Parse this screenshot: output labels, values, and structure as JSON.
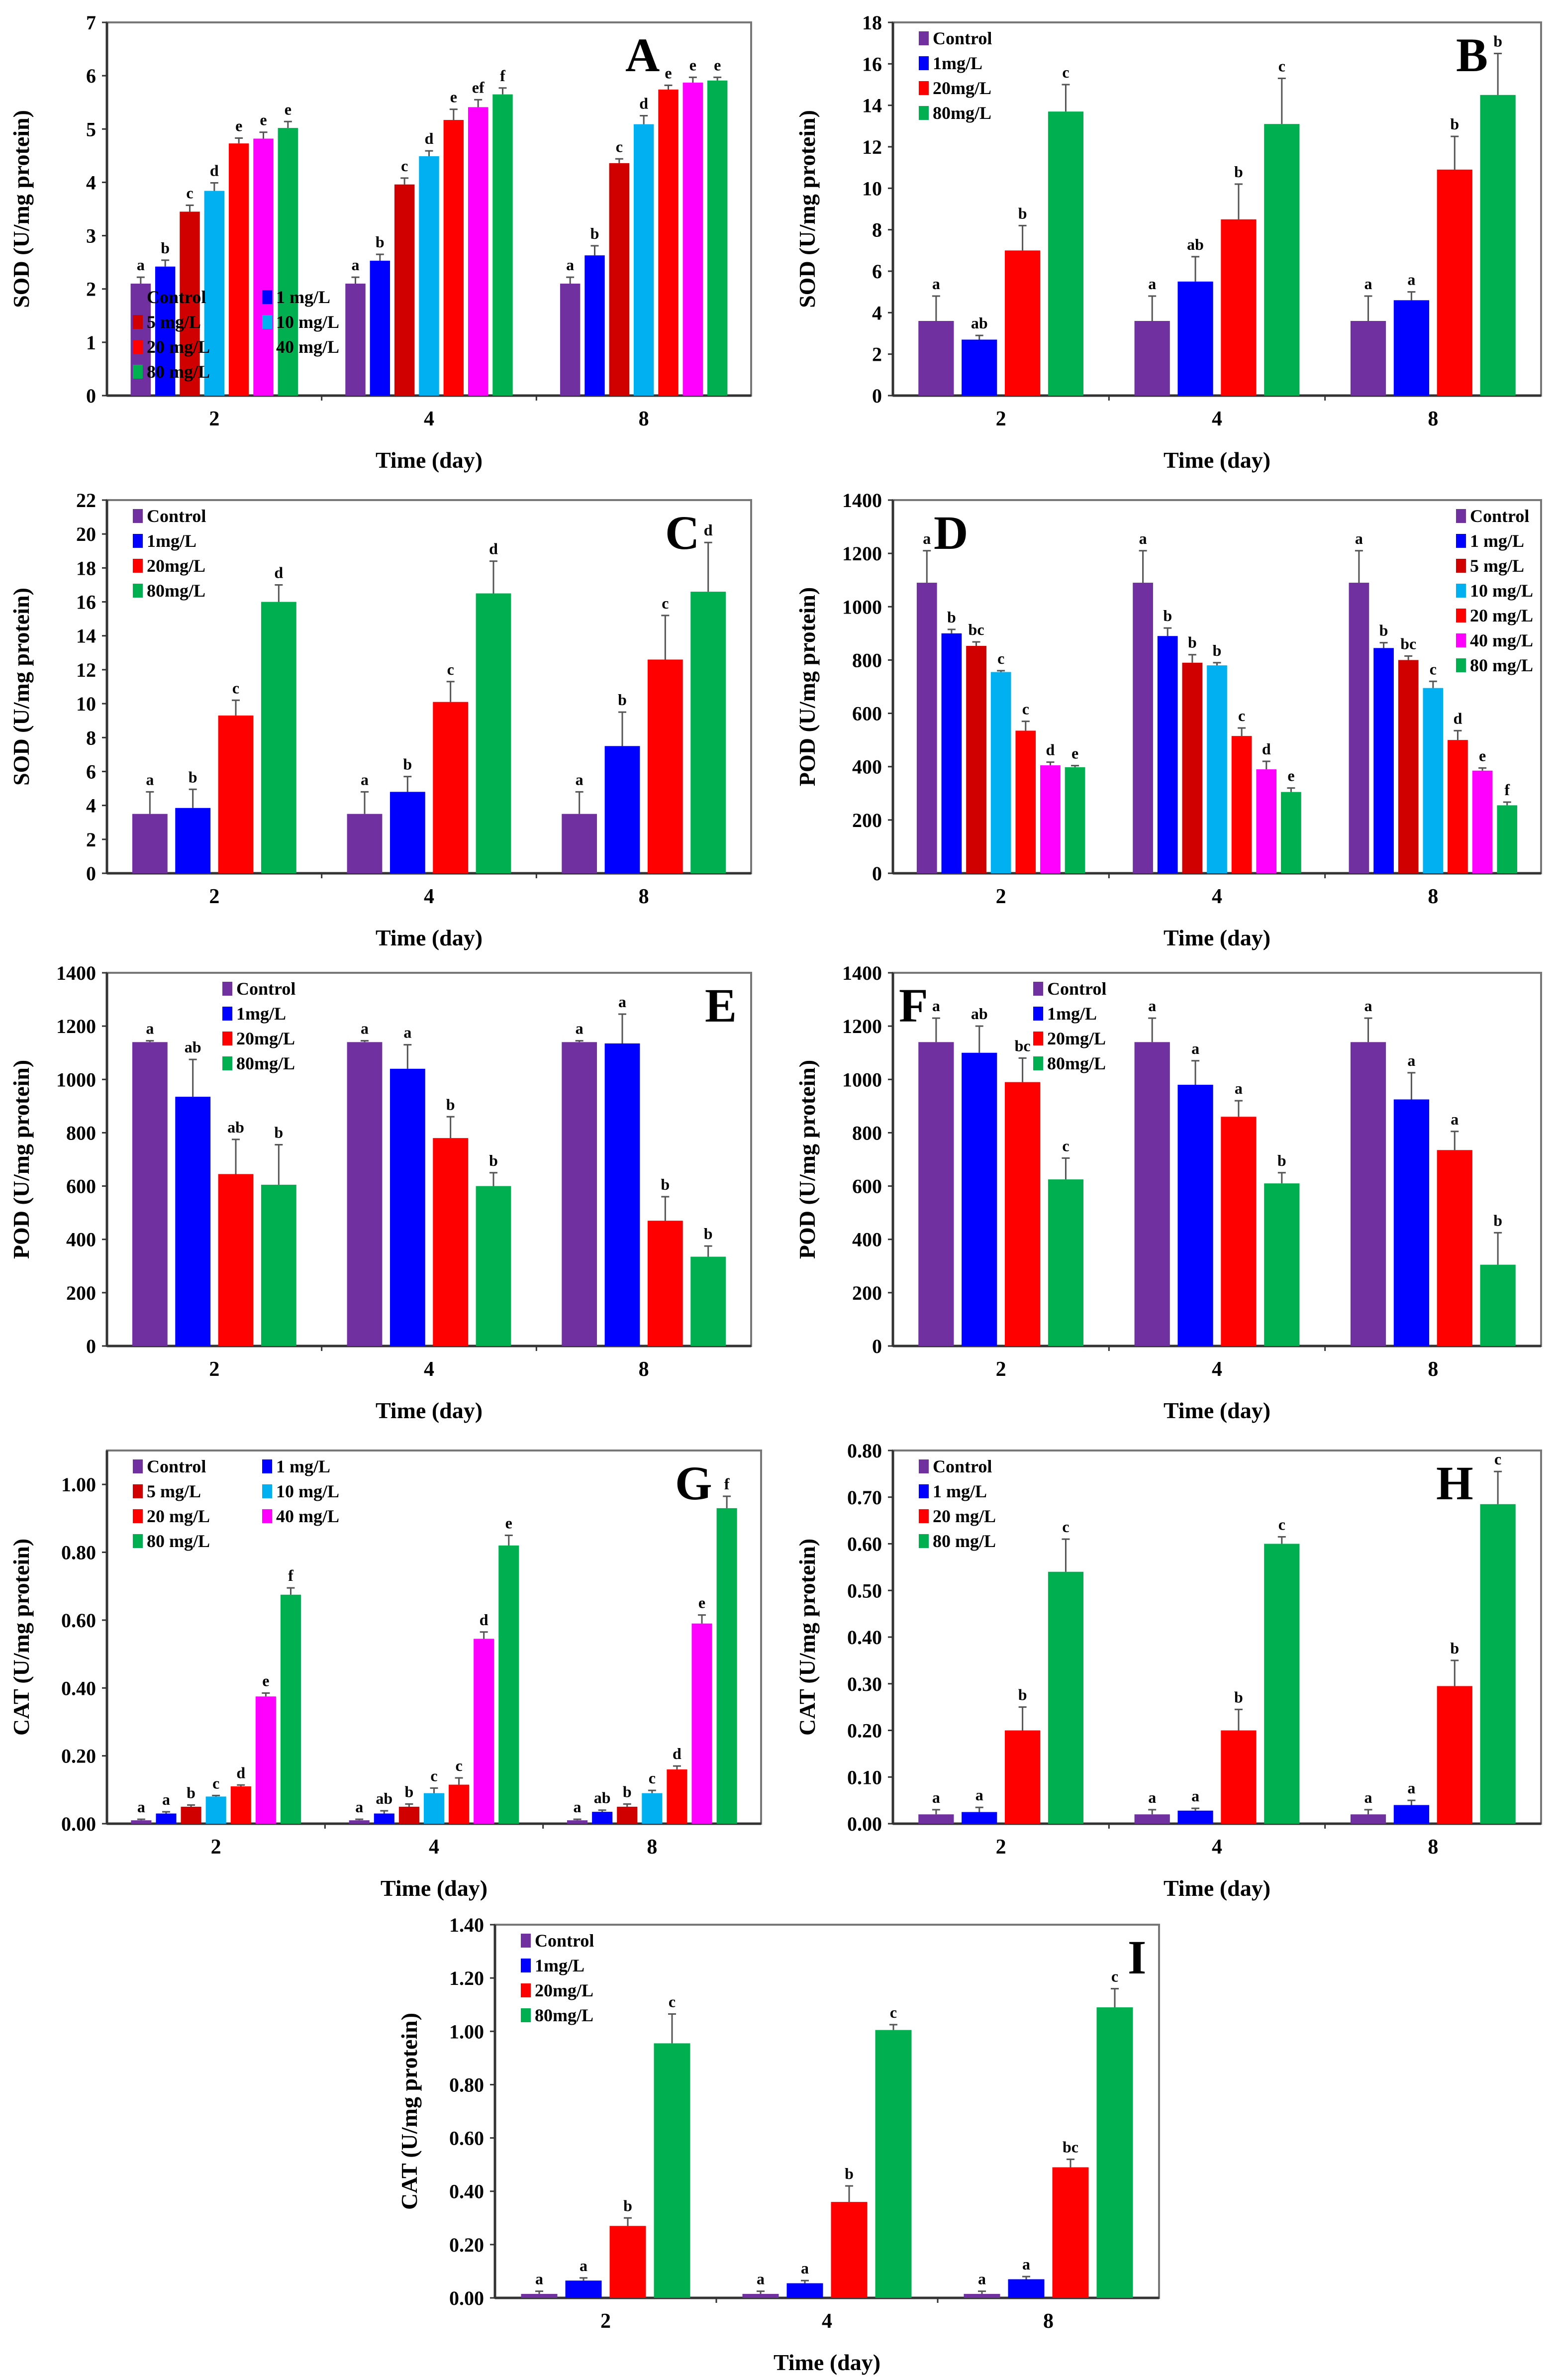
{
  "chart_data": [
    {
      "panel": "A",
      "type": "bar",
      "ylabel": "SOD (U/mg protein)",
      "xlabel": "Time (day)",
      "categories": [
        "2",
        "4",
        "8"
      ],
      "ylim": [
        0,
        7
      ],
      "ytick_step": 1,
      "ytick_decimals": 0,
      "legend_position": "top-left",
      "legend_columns": 2,
      "panel_label_position": "top-right",
      "series": [
        {
          "name": "Control",
          "color": "#7030a0",
          "values": [
            2.1,
            2.1,
            2.1
          ],
          "err": [
            0.12,
            0.12,
            0.12
          ],
          "letters": [
            "a",
            "a",
            "a"
          ]
        },
        {
          "name": "1 mg/L",
          "color": "#0000ff",
          "values": [
            2.42,
            2.53,
            2.63
          ],
          "err": [
            0.12,
            0.12,
            0.18
          ],
          "letters": [
            "b",
            "b",
            "b"
          ]
        },
        {
          "name": "5 mg/L",
          "color": "#d00000",
          "values": [
            3.45,
            3.96,
            4.36
          ],
          "err": [
            0.12,
            0.12,
            0.08
          ],
          "letters": [
            "c",
            "c",
            "c"
          ]
        },
        {
          "name": "10 mg/L",
          "color": "#00b0f0",
          "values": [
            3.84,
            4.49,
            5.09
          ],
          "err": [
            0.15,
            0.1,
            0.16
          ],
          "letters": [
            "d",
            "d",
            "d"
          ]
        },
        {
          "name": "20 mg/L",
          "color": "#ff0000",
          "values": [
            4.73,
            5.17,
            5.74
          ],
          "err": [
            0.1,
            0.2,
            0.08
          ],
          "letters": [
            "e",
            "e",
            "e"
          ]
        },
        {
          "name": "40 mg/L",
          "color": "#ff00ff",
          "values": [
            4.82,
            5.41,
            5.87
          ],
          "err": [
            0.12,
            0.14,
            0.1
          ],
          "letters": [
            "e",
            "ef",
            "e"
          ]
        },
        {
          "name": "80 mg/L",
          "color": "#00b050",
          "values": [
            5.02,
            5.65,
            5.91
          ],
          "err": [
            0.12,
            0.12,
            0.06
          ],
          "letters": [
            "e",
            "f",
            "e"
          ]
        }
      ]
    },
    {
      "panel": "B",
      "type": "bar",
      "ylabel": "SOD (U/mg protein)",
      "xlabel": "Time (day)",
      "categories": [
        "2",
        "4",
        "8"
      ],
      "ylim": [
        0,
        18
      ],
      "ytick_step": 2,
      "ytick_decimals": 0,
      "legend_position": "top-left",
      "legend_columns": 1,
      "panel_label_position": "top-right",
      "series": [
        {
          "name": "Control",
          "color": "#7030a0",
          "values": [
            3.6,
            3.6,
            3.6
          ],
          "err": [
            1.2,
            1.2,
            1.2
          ],
          "letters": [
            "a",
            "a",
            "a"
          ]
        },
        {
          "name": "1mg/L",
          "color": "#0000ff",
          "values": [
            2.7,
            5.5,
            4.6
          ],
          "err": [
            0.2,
            1.2,
            0.4
          ],
          "letters": [
            "ab",
            "ab",
            "a"
          ]
        },
        {
          "name": "20mg/L",
          "color": "#ff0000",
          "values": [
            7.0,
            8.5,
            10.9
          ],
          "err": [
            1.2,
            1.7,
            1.6
          ],
          "letters": [
            "b",
            "b",
            "b"
          ]
        },
        {
          "name": "80mg/L",
          "color": "#00b050",
          "values": [
            13.7,
            13.1,
            14.5
          ],
          "err": [
            1.3,
            2.2,
            2.0
          ],
          "letters": [
            "c",
            "c",
            "b"
          ]
        }
      ]
    },
    {
      "panel": "C",
      "type": "bar",
      "ylabel": "SOD (U/mg protein)",
      "xlabel": "Time (day)",
      "categories": [
        "2",
        "4",
        "8"
      ],
      "ylim": [
        0,
        22
      ],
      "ytick_step": 2,
      "ytick_decimals": 0,
      "legend_position": "top-left",
      "legend_columns": 1,
      "panel_label_position": "top-right",
      "series": [
        {
          "name": "Control",
          "color": "#7030a0",
          "values": [
            3.5,
            3.5,
            3.5
          ],
          "err": [
            1.3,
            1.3,
            1.3
          ],
          "letters": [
            "a",
            "a",
            "a"
          ]
        },
        {
          "name": "1mg/L",
          "color": "#0000ff",
          "values": [
            3.85,
            4.8,
            7.5
          ],
          "err": [
            1.1,
            0.9,
            2.0
          ],
          "letters": [
            "b",
            "b",
            "b"
          ]
        },
        {
          "name": "20mg/L",
          "color": "#ff0000",
          "values": [
            9.3,
            10.1,
            12.6
          ],
          "err": [
            0.9,
            1.2,
            2.6
          ],
          "letters": [
            "c",
            "c",
            "c"
          ]
        },
        {
          "name": "80mg/L",
          "color": "#00b050",
          "values": [
            16.0,
            16.5,
            16.6
          ],
          "err": [
            1.0,
            1.9,
            2.9
          ],
          "letters": [
            "d",
            "d",
            "d"
          ]
        }
      ]
    },
    {
      "panel": "D",
      "type": "bar",
      "ylabel": "POD (U/mg protein)",
      "xlabel": "Time (day)",
      "categories": [
        "2",
        "4",
        "8"
      ],
      "ylim": [
        0,
        1400
      ],
      "ytick_step": 200,
      "ytick_decimals": 0,
      "legend_position": "top-right",
      "legend_columns": 1,
      "panel_label_position": "top-left",
      "series": [
        {
          "name": "Control",
          "color": "#7030a0",
          "values": [
            1090,
            1090,
            1090
          ],
          "err": [
            120,
            120,
            120
          ],
          "letters": [
            "a",
            "a",
            "a"
          ]
        },
        {
          "name": "1 mg/L",
          "color": "#0000ff",
          "values": [
            900,
            890,
            845
          ],
          "err": [
            15,
            30,
            20
          ],
          "letters": [
            "b",
            "b",
            "b"
          ]
        },
        {
          "name": "5 mg/L",
          "color": "#d00000",
          "values": [
            853,
            790,
            800
          ],
          "err": [
            15,
            30,
            15
          ],
          "letters": [
            "bc",
            "b",
            "bc"
          ]
        },
        {
          "name": "10 mg/L",
          "color": "#00b0f0",
          "values": [
            755,
            780,
            695
          ],
          "err": [
            5,
            10,
            25
          ],
          "letters": [
            "c",
            "b",
            "c"
          ]
        },
        {
          "name": "20 mg/L",
          "color": "#ff0000",
          "values": [
            535,
            515,
            500
          ],
          "err": [
            35,
            30,
            35
          ],
          "letters": [
            "c",
            "c",
            "d"
          ]
        },
        {
          "name": "40 mg/L",
          "color": "#ff00ff",
          "values": [
            405,
            390,
            385
          ],
          "err": [
            12,
            30,
            10
          ],
          "letters": [
            "d",
            "d",
            "e"
          ]
        },
        {
          "name": "80 mg/L",
          "color": "#00b050",
          "values": [
            398,
            305,
            255
          ],
          "err": [
            6,
            15,
            12
          ],
          "letters": [
            "e",
            "e",
            "f"
          ]
        }
      ]
    },
    {
      "panel": "E",
      "type": "bar",
      "ylabel": "POD (U/mg protein)",
      "xlabel": "Time (day)",
      "categories": [
        "2",
        "4",
        "8"
      ],
      "ylim": [
        0,
        1400
      ],
      "ytick_step": 200,
      "ytick_decimals": 0,
      "legend_position": "top-center",
      "legend_columns": 1,
      "panel_label_position": "top-right",
      "series": [
        {
          "name": "Control",
          "color": "#7030a0",
          "values": [
            1140,
            1140,
            1140
          ],
          "err": [
            5,
            5,
            5
          ],
          "letters": [
            "a",
            "a",
            "a"
          ]
        },
        {
          "name": "1mg/L",
          "color": "#0000ff",
          "values": [
            935,
            1040,
            1135
          ],
          "err": [
            140,
            90,
            110
          ],
          "letters": [
            "ab",
            "a",
            "a"
          ]
        },
        {
          "name": "20mg/L",
          "color": "#ff0000",
          "values": [
            645,
            780,
            470
          ],
          "err": [
            130,
            80,
            90
          ],
          "letters": [
            "ab",
            "b",
            "b"
          ]
        },
        {
          "name": "80mg/L",
          "color": "#00b050",
          "values": [
            605,
            600,
            335
          ],
          "err": [
            150,
            50,
            40
          ],
          "letters": [
            "b",
            "b",
            "b"
          ]
        }
      ]
    },
    {
      "panel": "F",
      "type": "bar",
      "ylabel": "POD (U/mg  protein)",
      "xlabel": "Time (day)",
      "categories": [
        "2",
        "4",
        "8"
      ],
      "ylim": [
        0,
        1400
      ],
      "ytick_step": 200,
      "ytick_decimals": 0,
      "legend_position": "top-center",
      "legend_columns": 1,
      "panel_label_position": "top-left",
      "series": [
        {
          "name": "Control",
          "color": "#7030a0",
          "values": [
            1140,
            1140,
            1140
          ],
          "err": [
            90,
            90,
            90
          ],
          "letters": [
            "a",
            "a",
            "a"
          ]
        },
        {
          "name": "1mg/L",
          "color": "#0000ff",
          "values": [
            1100,
            980,
            925
          ],
          "err": [
            100,
            90,
            100
          ],
          "letters": [
            "ab",
            "a",
            "a"
          ]
        },
        {
          "name": "20mg/L",
          "color": "#ff0000",
          "values": [
            990,
            860,
            735
          ],
          "err": [
            90,
            60,
            70
          ],
          "letters": [
            "bc",
            "a",
            "a"
          ]
        },
        {
          "name": "80mg/L",
          "color": "#00b050",
          "values": [
            625,
            610,
            305
          ],
          "err": [
            80,
            40,
            120
          ],
          "letters": [
            "c",
            "b",
            "b"
          ]
        }
      ]
    },
    {
      "panel": "G",
      "type": "bar",
      "ylabel": "CAT (U/mg protein)",
      "xlabel": "Time (day)",
      "categories": [
        "2",
        "4",
        "8"
      ],
      "ylim": [
        0,
        1.1
      ],
      "ytick_step": 0.2,
      "ytick_max": 1.0,
      "ytick_decimals": 2,
      "legend_position": "top-left",
      "legend_columns": 2,
      "panel_label_position": "top-right",
      "series": [
        {
          "name": "Control",
          "color": "#7030a0",
          "values": [
            0.01,
            0.01,
            0.01
          ],
          "err": [
            0.003,
            0.003,
            0.003
          ],
          "letters": [
            "a",
            "a",
            "a"
          ]
        },
        {
          "name": "1 mg/L",
          "color": "#0000ff",
          "values": [
            0.03,
            0.03,
            0.035
          ],
          "err": [
            0.005,
            0.008,
            0.005
          ],
          "letters": [
            "a",
            "ab",
            "ab"
          ]
        },
        {
          "name": "5 mg/L",
          "color": "#d00000",
          "values": [
            0.05,
            0.05,
            0.05
          ],
          "err": [
            0.005,
            0.008,
            0.008
          ],
          "letters": [
            "b",
            "b",
            "b"
          ]
        },
        {
          "name": "10 mg/L",
          "color": "#00b0f0",
          "values": [
            0.08,
            0.09,
            0.09
          ],
          "err": [
            0.003,
            0.015,
            0.008
          ],
          "letters": [
            "c",
            "c",
            "c"
          ]
        },
        {
          "name": "20 mg/L",
          "color": "#ff0000",
          "values": [
            0.11,
            0.115,
            0.16
          ],
          "err": [
            0.004,
            0.02,
            0.01
          ],
          "letters": [
            "d",
            "c",
            "d"
          ]
        },
        {
          "name": "40 mg/L",
          "color": "#ff00ff",
          "values": [
            0.375,
            0.545,
            0.59
          ],
          "err": [
            0.01,
            0.02,
            0.025
          ],
          "letters": [
            "e",
            "d",
            "e"
          ]
        },
        {
          "name": "80 mg/L",
          "color": "#00b050",
          "values": [
            0.675,
            0.82,
            0.93
          ],
          "err": [
            0.02,
            0.03,
            0.035
          ],
          "letters": [
            "f",
            "e",
            "f"
          ]
        }
      ]
    },
    {
      "panel": "H",
      "type": "bar",
      "ylabel": "CAT (U/mg protein)",
      "xlabel": "Time (day)",
      "categories": [
        "2",
        "4",
        "8"
      ],
      "ylim": [
        0,
        0.8
      ],
      "ytick_step": 0.1,
      "ytick_decimals": 2,
      "legend_position": "top-left",
      "legend_columns": 1,
      "panel_label_position": "top-right",
      "series": [
        {
          "name": "Control",
          "color": "#7030a0",
          "values": [
            0.02,
            0.02,
            0.02
          ],
          "err": [
            0.01,
            0.01,
            0.01
          ],
          "letters": [
            "a",
            "a",
            "a"
          ]
        },
        {
          "name": "1 mg/L",
          "color": "#0000ff",
          "values": [
            0.025,
            0.028,
            0.04
          ],
          "err": [
            0.01,
            0.005,
            0.01
          ],
          "letters": [
            "a",
            "a",
            "a"
          ]
        },
        {
          "name": "20 mg/L",
          "color": "#ff0000",
          "values": [
            0.2,
            0.2,
            0.295
          ],
          "err": [
            0.05,
            0.045,
            0.055
          ],
          "letters": [
            "b",
            "b",
            "b"
          ]
        },
        {
          "name": "80 mg/L",
          "color": "#00b050",
          "values": [
            0.54,
            0.6,
            0.685
          ],
          "err": [
            0.07,
            0.015,
            0.07
          ],
          "letters": [
            "c",
            "c",
            "c"
          ]
        }
      ]
    },
    {
      "panel": "I",
      "type": "bar",
      "ylabel": "CAT (U/mg protein)",
      "xlabel": "Time (day)",
      "categories": [
        "2",
        "4",
        "8"
      ],
      "ylim": [
        0,
        1.4
      ],
      "ytick_step": 0.2,
      "ytick_decimals": 2,
      "legend_position": "top-left",
      "legend_columns": 1,
      "panel_label_position": "top-right",
      "series": [
        {
          "name": "Control",
          "color": "#7030a0",
          "values": [
            0.015,
            0.015,
            0.015
          ],
          "err": [
            0.01,
            0.01,
            0.01
          ],
          "letters": [
            "a",
            "a",
            "a"
          ]
        },
        {
          "name": "1mg/L",
          "color": "#0000ff",
          "values": [
            0.065,
            0.055,
            0.07
          ],
          "err": [
            0.01,
            0.01,
            0.01
          ],
          "letters": [
            "a",
            "a",
            "a"
          ]
        },
        {
          "name": "20mg/L",
          "color": "#ff0000",
          "values": [
            0.27,
            0.36,
            0.49
          ],
          "err": [
            0.03,
            0.06,
            0.03
          ],
          "letters": [
            "b",
            "b",
            "bc"
          ]
        },
        {
          "name": "80mg/L",
          "color": "#00b050",
          "values": [
            0.955,
            1.005,
            1.09
          ],
          "err": [
            0.11,
            0.02,
            0.07
          ],
          "letters": [
            "c",
            "c",
            "c"
          ]
        }
      ]
    }
  ]
}
